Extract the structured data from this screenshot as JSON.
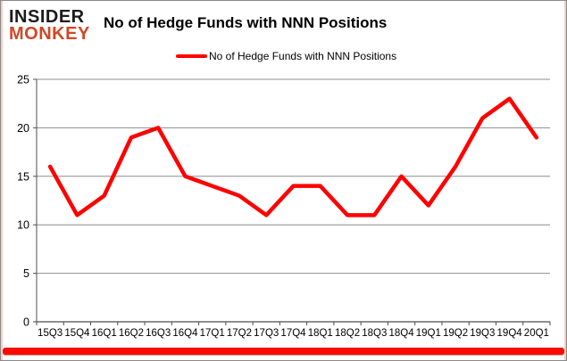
{
  "logo": {
    "line1": "INSIDER",
    "line2": "MONKEY",
    "line1_color": "#1c1c1c",
    "line2_color": "#d14727"
  },
  "title": "No of Hedge Funds with NNN Positions",
  "legend": {
    "label": "No of Hedge Funds with NNN Positions",
    "line_color": "#ff0000"
  },
  "chart_data": {
    "type": "line",
    "title": "No of Hedge Funds with NNN Positions",
    "categories": [
      "15Q3",
      "15Q4",
      "16Q1",
      "16Q2",
      "16Q3",
      "16Q4",
      "17Q1",
      "17Q2",
      "17Q3",
      "17Q4",
      "18Q1",
      "18Q2",
      "18Q3",
      "18Q4",
      "19Q1",
      "19Q2",
      "19Q3",
      "19Q4",
      "20Q1"
    ],
    "series": [
      {
        "name": "No of Hedge Funds with NNN Positions",
        "values": [
          16,
          11,
          13,
          19,
          20,
          15,
          14,
          13,
          11,
          14,
          14,
          11,
          11,
          15,
          12,
          16,
          21,
          23,
          19
        ],
        "color": "#ff0000"
      }
    ],
    "xlabel": "",
    "ylabel": "",
    "ylim": [
      0,
      25
    ],
    "yticks": [
      0,
      5,
      10,
      15,
      20,
      25
    ],
    "grid": true,
    "legend_position": "top"
  },
  "colors": {
    "gridline": "#8c8c8c",
    "axis": "#4d4d4d",
    "label": "#000000",
    "background": "#ffffff",
    "accent_bar": "#f60c00",
    "edge_tint": "#f6cdc5"
  }
}
